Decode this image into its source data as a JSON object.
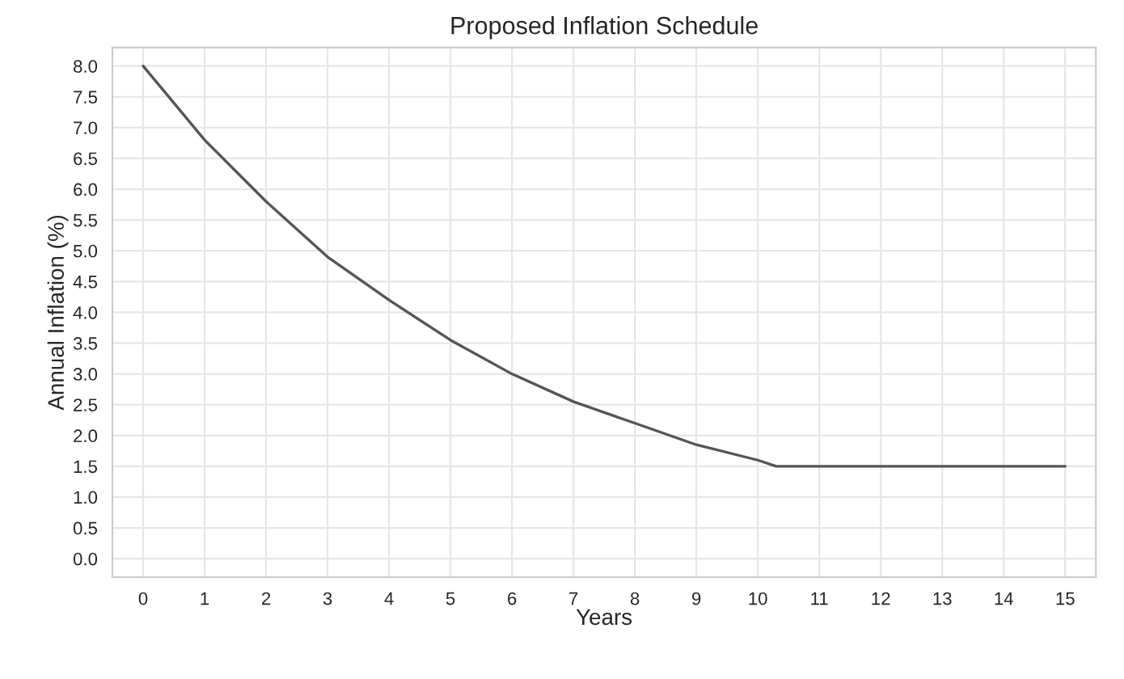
{
  "chart_data": {
    "type": "line",
    "title": "Proposed Inflation Schedule",
    "xlabel": "Years",
    "ylabel": "Annual Inflation (%)",
    "series": [
      {
        "color": "#555555",
        "x": [
          0,
          1,
          2,
          3,
          4,
          5,
          6,
          7,
          8,
          9,
          10,
          10.3,
          15
        ],
        "values": [
          8.0,
          6.8,
          5.8,
          4.9,
          4.2,
          3.55,
          3.0,
          2.55,
          2.2,
          1.85,
          1.6,
          1.5,
          1.5
        ]
      }
    ],
    "xlim": [
      -0.5,
      15.5
    ],
    "ylim": [
      -0.3,
      8.3
    ],
    "xticks": [
      0,
      1,
      2,
      3,
      4,
      5,
      6,
      7,
      8,
      9,
      10,
      11,
      12,
      13,
      14,
      15
    ],
    "yticks": [
      {
        "value": 0,
        "label": "0.0"
      },
      {
        "value": 0.5,
        "label": "0.5"
      },
      {
        "value": 1,
        "label": "1.0"
      },
      {
        "value": 1.5,
        "label": "1.5"
      },
      {
        "value": 2,
        "label": "2.0"
      },
      {
        "value": 2.5,
        "label": "2.5"
      },
      {
        "value": 3,
        "label": "3.0"
      },
      {
        "value": 3.5,
        "label": "3.5"
      },
      {
        "value": 4,
        "label": "4.0"
      },
      {
        "value": 4.5,
        "label": "4.5"
      },
      {
        "value": 5,
        "label": "5.0"
      },
      {
        "value": 5.5,
        "label": "5.5"
      },
      {
        "value": 6,
        "label": "6.0"
      },
      {
        "value": 6.5,
        "label": "6.5"
      },
      {
        "value": 7,
        "label": "7.0"
      },
      {
        "value": 7.5,
        "label": "7.5"
      },
      {
        "value": 8,
        "label": "8.0"
      }
    ],
    "grid": true,
    "marker": "none",
    "line_style": "solid"
  }
}
